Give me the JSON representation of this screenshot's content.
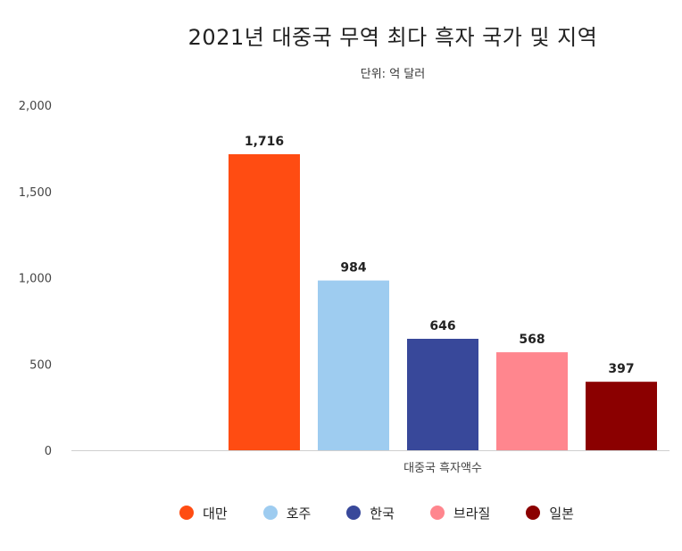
{
  "chart_data": {
    "type": "bar",
    "title": "2021년 대중국 무역 최다 흑자 국가 및 지역",
    "subtitle": "단위: 억 달러",
    "xlabel": "대중국 흑자액수",
    "ylim": [
      0,
      2000
    ],
    "yticks": [
      "0",
      "500",
      "1,000",
      "1,500",
      "2,000"
    ],
    "ytick_values": [
      0,
      500,
      1000,
      1500,
      2000
    ],
    "grid": false,
    "legend_position": "bottom",
    "series": [
      {
        "name": "대만",
        "value": 1716,
        "label": "1,716",
        "color": "#FF4C12"
      },
      {
        "name": "호주",
        "value": 984,
        "label": "984",
        "color": "#9ECCF0"
      },
      {
        "name": "한국",
        "value": 646,
        "label": "646",
        "color": "#38489A"
      },
      {
        "name": "브라질",
        "value": 568,
        "label": "568",
        "color": "#FF868E"
      },
      {
        "name": "일본",
        "value": 397,
        "label": "397",
        "color": "#8B0000"
      }
    ]
  }
}
